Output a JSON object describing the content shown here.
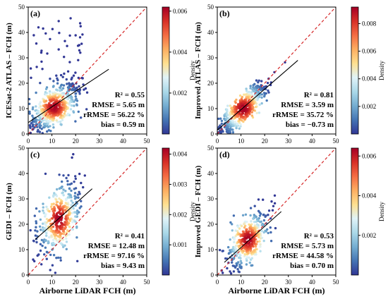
{
  "figure": {
    "xlabel": "Airborne LiDAR FCH (m)",
    "colormap": [
      "#313695",
      "#4575b4",
      "#74add1",
      "#abd9e9",
      "#e0f3f8",
      "#fee090",
      "#fdae61",
      "#f46d43",
      "#d73027",
      "#a50026"
    ],
    "one_to_one_color": "#d62728",
    "fit_color": "#000000"
  },
  "chart_data": [
    {
      "type": "scatter",
      "panel": "(a)",
      "ylabel": "ICESat-2 ATLAS – FCH (m)",
      "xlim": [
        0,
        50
      ],
      "ylim": [
        0,
        50
      ],
      "xticks": [
        "0",
        "10",
        "20",
        "30",
        "40",
        "50"
      ],
      "yticks": [
        "0",
        "10",
        "20",
        "30",
        "40",
        "50"
      ],
      "fit_line": {
        "x": [
          0,
          34
        ],
        "y": [
          4.5,
          25.5
        ]
      },
      "one_to_one": true,
      "point_cloud": {
        "center": [
          11,
          10.5
        ],
        "spread_x": 5,
        "spread_y": 4.5,
        "n": 520,
        "outlier_high": true
      },
      "stats": [
        "R² = 0.55",
        "RMSE = 5.65 m",
        "rRMSE = 56.22 %",
        "bias = 0.59 m"
      ],
      "colorbar": {
        "label": "Density",
        "max": 0.0062,
        "ticks": [
          "0.002",
          "0.004",
          "0.006"
        ],
        "values": [
          0.002,
          0.004,
          0.006
        ]
      }
    },
    {
      "type": "scatter",
      "panel": "(b)",
      "ylabel": "Improved ATLAS – FCH (m)",
      "xlim": [
        0,
        50
      ],
      "ylim": [
        0,
        50
      ],
      "xticks": [
        "0",
        "10",
        "20",
        "30",
        "40",
        "50"
      ],
      "yticks": [
        "0",
        "10",
        "20",
        "30",
        "40",
        "50"
      ],
      "fit_line": {
        "x": [
          0,
          34
        ],
        "y": [
          1.5,
          29
        ]
      },
      "one_to_one": true,
      "point_cloud": {
        "center": [
          11,
          10
        ],
        "spread_x": 5,
        "spread_y": 5,
        "n": 520,
        "corr": 0.85
      },
      "stats": [
        "R² = 0.81",
        "RMSE = 3.59 m",
        "rRMSE = 35.72 %",
        "bias = −0.73 m"
      ],
      "colorbar": {
        "label": "Density",
        "max": 0.0092,
        "ticks": [
          "0.002",
          "0.004",
          "0.006",
          "0.008"
        ],
        "values": [
          0.002,
          0.004,
          0.006,
          0.008
        ]
      }
    },
    {
      "type": "scatter",
      "panel": "(c)",
      "ylabel": "GEDI – FCH (m)",
      "xlim": [
        0,
        50
      ],
      "ylim": [
        0,
        50
      ],
      "xticks": [
        "0",
        "10",
        "20",
        "30",
        "40",
        "50"
      ],
      "yticks": [
        "0",
        "10",
        "20",
        "30",
        "40",
        "50"
      ],
      "fit_line": {
        "x": [
          3,
          27
        ],
        "y": [
          14,
          34
        ]
      },
      "one_to_one": true,
      "point_cloud": {
        "center": [
          13,
          22
        ],
        "spread_x": 4.5,
        "spread_y": 7,
        "n": 420,
        "corr": 0.4
      },
      "stats": [
        "R² = 0.41",
        "RMSE = 12.48 m",
        "rRMSE = 97.16 %",
        "bias = 9.43 m"
      ],
      "colorbar": {
        "label": "Density",
        "max": 0.0042,
        "ticks": [
          "0.001",
          "0.002",
          "0.003",
          "0.004"
        ],
        "values": [
          0.001,
          0.002,
          0.003,
          0.004
        ]
      }
    },
    {
      "type": "scatter",
      "panel": "(d)",
      "ylabel": "Improved GEDI – FCH (m)",
      "xlim": [
        0,
        50
      ],
      "ylim": [
        0,
        50
      ],
      "xticks": [
        "0",
        "10",
        "20",
        "30",
        "40",
        "50"
      ],
      "yticks": [
        "0",
        "10",
        "20",
        "30",
        "40",
        "50"
      ],
      "fit_line": {
        "x": [
          3,
          27
        ],
        "y": [
          5,
          25
        ]
      },
      "one_to_one": true,
      "point_cloud": {
        "center": [
          13,
          14
        ],
        "spread_x": 4.5,
        "spread_y": 5.5,
        "n": 420,
        "corr": 0.6
      },
      "stats": [
        "R² = 0.53",
        "RMSE = 5.73 m",
        "rRMSE = 44.58 %",
        "bias = 0.70 m"
      ],
      "colorbar": {
        "label": "Density",
        "max": 0.0064,
        "ticks": [
          "0.002",
          "0.004",
          "0.006"
        ],
        "values": [
          0.002,
          0.004,
          0.006
        ]
      }
    }
  ]
}
